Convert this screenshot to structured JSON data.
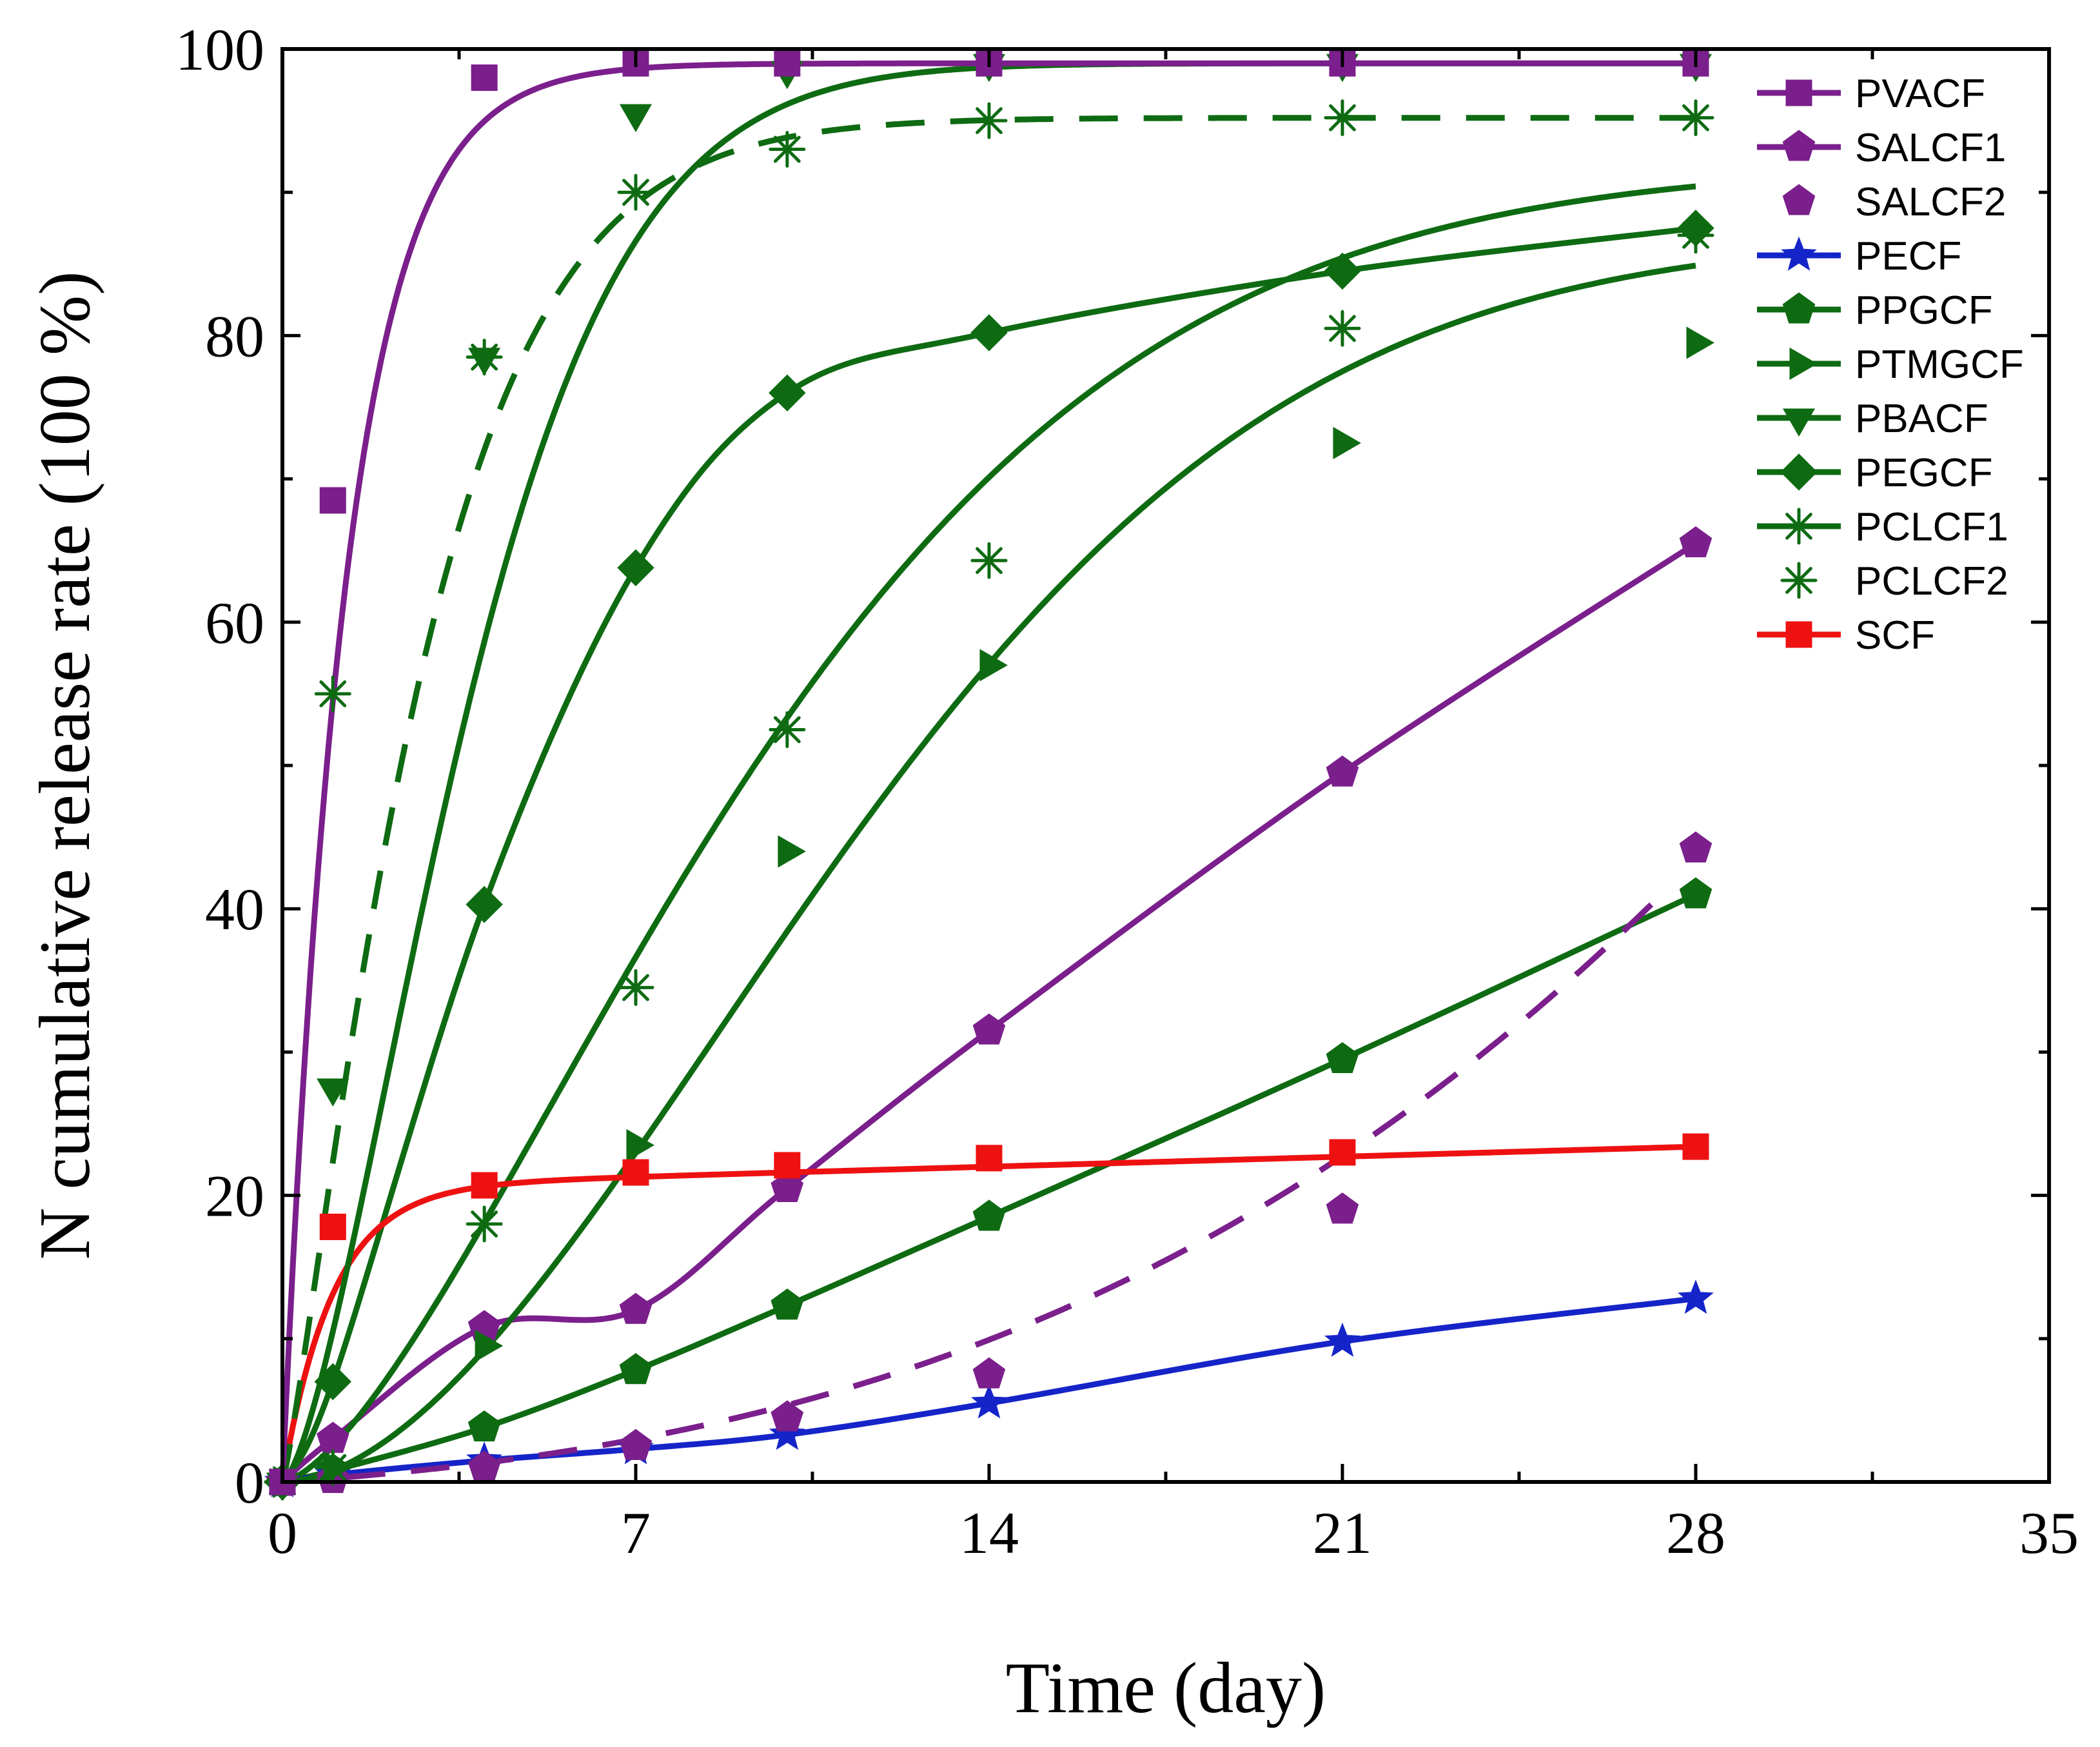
{
  "chart_data": {
    "type": "scatter",
    "title": "",
    "xlabel": "Time (day)",
    "ylabel": "N cumulative release rate (100 %)",
    "xlim": [
      0,
      35
    ],
    "ylim": [
      0,
      100
    ],
    "xticks": [
      0,
      7,
      14,
      21,
      28,
      35
    ],
    "yticks": [
      0,
      20,
      40,
      60,
      80,
      100
    ],
    "legend_position": "top-right",
    "grid": false,
    "series": [
      {
        "name": "PVACF",
        "color": "#7B1F8C",
        "marker": "square",
        "line": "solid",
        "x": [
          0,
          1,
          4,
          7,
          10,
          14,
          21,
          28
        ],
        "values": [
          0,
          68.5,
          98,
          99,
          99,
          99,
          99,
          99
        ],
        "fit": {
          "model": "exp",
          "plateau": 99,
          "k": 0.8
        }
      },
      {
        "name": "SALCF1",
        "color": "#7B1F8C",
        "marker": "pentagon",
        "line": "solid",
        "x": [
          0,
          1,
          4,
          7,
          10,
          14,
          21,
          28
        ],
        "values": [
          0,
          3,
          10.8,
          12,
          20.5,
          31.5,
          49.5,
          65.5
        ],
        "fit": {
          "model": "interp"
        }
      },
      {
        "name": "SALCF2",
        "color": "#7B1F8C",
        "marker": "pentagon",
        "line": "dashed",
        "x": [
          0,
          1,
          4,
          7,
          10,
          14,
          21,
          28
        ],
        "values": [
          0,
          0.2,
          1,
          2.5,
          4.5,
          7.5,
          19,
          44.2
        ],
        "fit": {
          "model": "poly",
          "a": 0.00094,
          "b": 0.0206,
          "c": 0.236,
          "xmax": 27.2
        }
      },
      {
        "name": "PECF",
        "color": "#1524C8",
        "marker": "star",
        "line": "solid",
        "x": [
          0,
          1,
          4,
          7,
          10,
          14,
          21,
          28
        ],
        "values": [
          0,
          0.5,
          1.5,
          2.3,
          3.3,
          5.5,
          9.8,
          12.8
        ],
        "fit": {
          "model": "interp"
        }
      },
      {
        "name": "PPGCF",
        "color": "#0E6B12",
        "marker": "pentagon",
        "line": "solid",
        "x": [
          0,
          1,
          4,
          7,
          10,
          14,
          21,
          28
        ],
        "values": [
          0,
          0.8,
          3.8,
          7.8,
          12.3,
          18.5,
          29.5,
          41
        ],
        "fit": {
          "model": "interp"
        }
      },
      {
        "name": "PTMGCF",
        "color": "#0E6B12",
        "marker": "triangle-right",
        "line": "solid",
        "x": [
          0,
          1,
          4,
          7,
          10,
          14,
          21,
          28
        ],
        "values": [
          0,
          1,
          9.5,
          23.5,
          44,
          57,
          72.5,
          79.5
        ],
        "fit": {
          "model": "weibull",
          "plateau": 87,
          "lambda": 13.5,
          "k": 1.8
        }
      },
      {
        "name": "PBACF",
        "color": "#0E6B12",
        "marker": "triangle-down",
        "line": "solid",
        "x": [
          0,
          1,
          4,
          7,
          10,
          14,
          21,
          28
        ],
        "values": [
          0,
          27.5,
          78.5,
          95.5,
          98.5,
          99,
          99,
          99
        ],
        "fit": {
          "model": "weibull",
          "plateau": 99,
          "lambda": 4.3,
          "k": 1.5
        }
      },
      {
        "name": "PEGCF",
        "color": "#0E6B12",
        "marker": "diamond",
        "line": "solid",
        "x": [
          0,
          1,
          4,
          7,
          10,
          14,
          21,
          28
        ],
        "values": [
          0,
          7,
          40.3,
          63.8,
          76,
          80.2,
          84.5,
          87.5
        ],
        "fit": {
          "model": "interp"
        }
      },
      {
        "name": "PCLCF1",
        "color": "#0E6B12",
        "marker": "asterisk",
        "line": "solid",
        "x": [
          0,
          1,
          4,
          7,
          10,
          14,
          21,
          28
        ],
        "values": [
          0,
          1,
          18,
          34.5,
          52.5,
          64.3,
          80.5,
          87
        ],
        "fit": {
          "model": "weibull",
          "plateau": 92,
          "lambda": 11,
          "k": 1.5
        }
      },
      {
        "name": "PCLCF2",
        "color": "#0E6B12",
        "marker": "asterisk",
        "line": "dashed",
        "x": [
          0,
          1,
          4,
          7,
          10,
          14,
          21,
          28
        ],
        "values": [
          0,
          55,
          78.5,
          90,
          93,
          95,
          95.2,
          95.2
        ],
        "fit": {
          "model": "weibull",
          "plateau": 95.2,
          "lambda": 3.0,
          "k": 1.2
        }
      },
      {
        "name": "SCF",
        "color": "#EE1111",
        "marker": "square",
        "line": "solid",
        "x": [
          0,
          1,
          4,
          7,
          10,
          14,
          21,
          28
        ],
        "values": [
          0,
          17.8,
          20.7,
          21.6,
          22.1,
          22.6,
          23.0,
          23.4
        ],
        "fit": {
          "model": "scf",
          "plateau": 20.6,
          "k": 1.0,
          "slope": 0.1
        }
      }
    ]
  }
}
